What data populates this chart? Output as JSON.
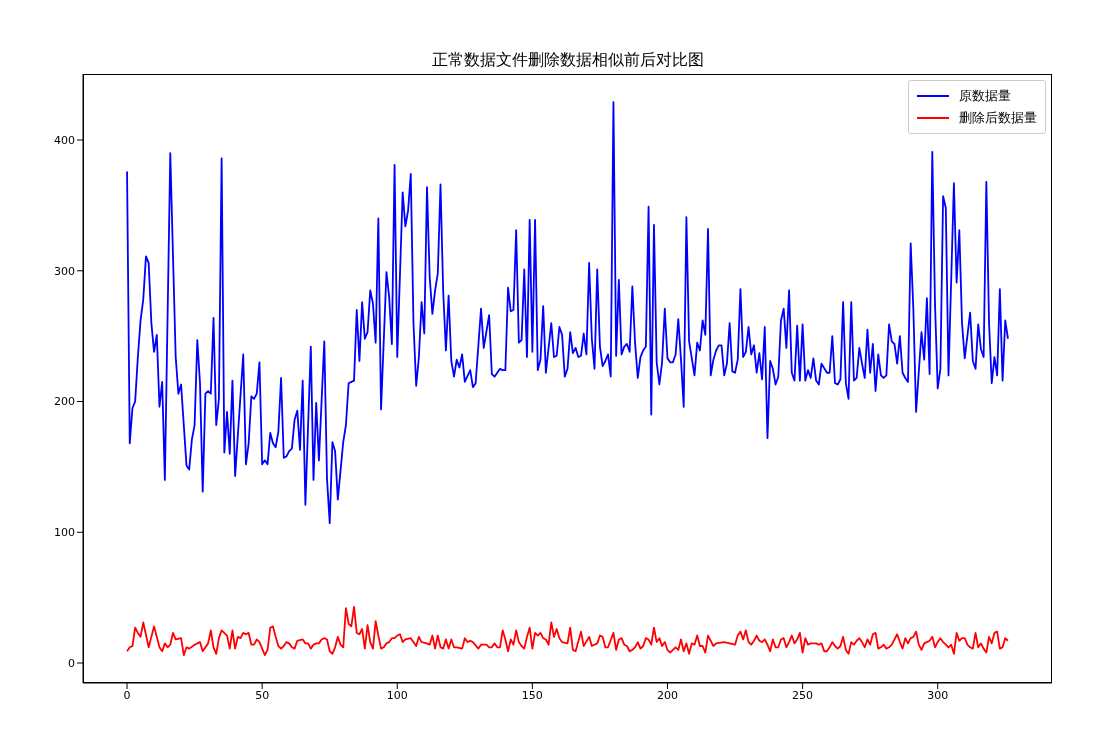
{
  "chart_data": {
    "type": "line",
    "title": "正常数据文件删除数据相似前后对比图",
    "legend": "top right",
    "xlim": [
      -16.3,
      342.3
    ],
    "xticks": [
      0,
      50,
      100,
      150,
      200,
      250,
      300
    ],
    "ylim": [
      -15.3,
      450.5
    ],
    "yticks": [
      0,
      100,
      200,
      300,
      400
    ],
    "series": [
      {
        "name": "原数据量",
        "color": "#0000ff",
        "x": [
          0,
          1,
          2,
          3,
          4,
          5,
          6,
          7,
          8,
          9,
          10,
          11,
          12,
          13,
          14,
          16,
          18,
          19,
          20,
          22,
          23,
          24,
          25,
          26,
          27,
          28,
          29,
          30,
          31,
          32,
          33,
          34,
          35,
          36,
          37,
          38,
          39,
          40,
          43,
          44,
          45,
          46,
          47,
          48,
          49,
          50,
          51,
          52,
          53,
          54,
          55,
          56,
          57,
          58,
          59,
          60,
          61,
          62,
          63,
          64,
          65,
          66,
          68,
          69,
          70,
          71,
          73,
          74,
          75,
          76,
          77,
          78,
          80,
          81,
          82,
          83,
          84,
          85,
          86,
          87,
          88,
          89,
          90,
          91,
          92,
          93,
          94,
          96,
          97,
          98,
          99,
          100,
          102,
          103,
          104,
          105,
          106,
          107,
          108,
          109,
          110,
          111,
          112,
          113,
          114,
          115,
          116,
          117,
          118,
          119,
          120,
          121,
          122,
          123,
          124,
          125,
          127,
          128,
          129,
          131,
          132,
          134,
          135,
          136,
          138,
          139,
          140,
          141,
          142,
          143,
          144,
          145,
          146,
          147,
          148,
          149,
          150,
          151,
          152,
          153,
          154,
          155,
          157,
          158,
          159,
          160,
          161,
          162,
          163,
          164,
          165,
          166,
          167,
          168,
          169,
          170,
          171,
          172,
          173,
          174,
          175,
          176,
          177,
          178,
          179,
          180,
          181,
          182,
          183,
          184,
          185,
          186,
          187,
          188,
          189,
          190,
          191,
          192,
          193,
          194,
          195,
          196,
          197,
          198,
          199,
          200,
          201,
          202,
          203,
          204,
          205,
          206,
          207,
          208,
          209,
          210,
          211,
          212,
          213,
          214,
          215,
          216,
          217,
          218,
          219,
          220,
          221,
          222,
          223,
          224,
          225,
          226,
          227,
          228,
          229,
          230,
          231,
          232,
          233,
          234,
          235,
          236,
          237,
          238,
          239,
          240,
          241,
          242,
          243,
          244,
          245,
          246,
          247,
          248,
          249,
          250,
          251,
          252,
          253,
          254,
          255,
          256,
          257,
          259,
          260,
          261,
          262,
          263,
          264,
          265,
          266,
          267,
          268,
          269,
          270,
          271,
          272,
          273,
          274,
          275,
          276,
          277,
          278,
          279,
          280,
          281,
          282,
          283,
          284,
          285,
          286,
          287,
          288,
          289,
          290,
          291,
          292,
          294,
          295,
          296,
          297,
          298,
          299,
          300,
          301,
          302,
          303,
          304,
          306,
          307,
          308,
          309,
          310,
          312,
          313,
          314,
          315,
          316,
          317,
          318,
          319,
          320,
          321,
          322,
          323,
          324,
          325,
          326
        ],
        "values": [
          376,
          168,
          195,
          200,
          234,
          262,
          278,
          311,
          306,
          260,
          238,
          251,
          196,
          215,
          140,
          390,
          234,
          206,
          213,
          151,
          148,
          171,
          182,
          247,
          214,
          131,
          206,
          208,
          206,
          264,
          182,
          202,
          386,
          161,
          192,
          160,
          216,
          143,
          236,
          152,
          168,
          204,
          202,
          206,
          230,
          152,
          155,
          152,
          176,
          168,
          165,
          177,
          218,
          157,
          158,
          162,
          164,
          186,
          193,
          163,
          216,
          121,
          242,
          140,
          199,
          155,
          246,
          141,
          107,
          169,
          162,
          125,
          169,
          182,
          214,
          215,
          216,
          270,
          231,
          276,
          248,
          253,
          285,
          275,
          245,
          340,
          194,
          299,
          280,
          244,
          381,
          234,
          360,
          334,
          346,
          374,
          260,
          212,
          234,
          276,
          252,
          364,
          295,
          267,
          285,
          298,
          366,
          284,
          239,
          281,
          231,
          219,
          232,
          226,
          236,
          215,
          224,
          211,
          214,
          271,
          241,
          266,
          221,
          219,
          225,
          224,
          224,
          287,
          269,
          270,
          331,
          245,
          247,
          301,
          234,
          339,
          238,
          339,
          224,
          232,
          273,
          222,
          260,
          234,
          235,
          257,
          251,
          219,
          225,
          253,
          237,
          241,
          234,
          235,
          252,
          236,
          306,
          248,
          225,
          301,
          242,
          227,
          231,
          236,
          219,
          429,
          235,
          293,
          236,
          242,
          244,
          238,
          288,
          245,
          218,
          234,
          239,
          242,
          349,
          190,
          335,
          230,
          213,
          230,
          271,
          233,
          230,
          230,
          236,
          263,
          232,
          196,
          341,
          246,
          233,
          220,
          245,
          239,
          262,
          251,
          332,
          220,
          232,
          239,
          243,
          243,
          220,
          229,
          260,
          223,
          222,
          232,
          286,
          234,
          238,
          257,
          236,
          243,
          222,
          237,
          217,
          257,
          172,
          231,
          225,
          213,
          219,
          262,
          271,
          241,
          285,
          222,
          216,
          258,
          216,
          259,
          216,
          224,
          218,
          233,
          216,
          213,
          229,
          222,
          222,
          250,
          214,
          213,
          217,
          276,
          214,
          202,
          276,
          216,
          218,
          241,
          229,
          218,
          255,
          222,
          244,
          208,
          236,
          220,
          218,
          220,
          259,
          246,
          244,
          229,
          250,
          222,
          218,
          215,
          321,
          270,
          192,
          253,
          232,
          279,
          221,
          391,
          275,
          210,
          225,
          357,
          348,
          220,
          367,
          291,
          331,
          260,
          233,
          268,
          231,
          225,
          259,
          240,
          234,
          368,
          260,
          214,
          234,
          220,
          286,
          216,
          262,
          248
        ]
      },
      {
        "name": "删除后数据量",
        "color": "#ff0000",
        "x": [
          0,
          1,
          2,
          3,
          4,
          5,
          6,
          8,
          10,
          12,
          13,
          14,
          15,
          16,
          17,
          18,
          20,
          21,
          22,
          23,
          25,
          26,
          27,
          28,
          30,
          31,
          32,
          33,
          34,
          35,
          37,
          38,
          39,
          40,
          41,
          42,
          43,
          44,
          45,
          46,
          47,
          48,
          49,
          51,
          52,
          53,
          54,
          55,
          56,
          57,
          58,
          59,
          60,
          61,
          62,
          63,
          65,
          66,
          67,
          68,
          69,
          70,
          71,
          72,
          73,
          74,
          75,
          76,
          77,
          78,
          79,
          80,
          81,
          82,
          83,
          84,
          85,
          86,
          87,
          88,
          89,
          90,
          91,
          92,
          93,
          94,
          95,
          96,
          97,
          98,
          99,
          100,
          101,
          102,
          103,
          105,
          107,
          108,
          109,
          111,
          112,
          113,
          114,
          115,
          116,
          117,
          118,
          119,
          120,
          121,
          122,
          124,
          125,
          126,
          127,
          128,
          130,
          131,
          133,
          134,
          135,
          136,
          137,
          138,
          139,
          140,
          141,
          142,
          143,
          144,
          145,
          146,
          147,
          148,
          149,
          150,
          151,
          152,
          153,
          154,
          155,
          156,
          157,
          158,
          159,
          160,
          161,
          163,
          164,
          165,
          166,
          168,
          169,
          171,
          172,
          174,
          175,
          176,
          177,
          178,
          180,
          181,
          182,
          183,
          184,
          185,
          186,
          187,
          188,
          189,
          190,
          191,
          192,
          193,
          194,
          195,
          196,
          197,
          198,
          199,
          200,
          201,
          202,
          203,
          204,
          205,
          206,
          207,
          208,
          209,
          210,
          211,
          212,
          213,
          214,
          215,
          217,
          218,
          221,
          223,
          225,
          226,
          227,
          228,
          229,
          230,
          231,
          232,
          233,
          234,
          235,
          236,
          237,
          238,
          239,
          240,
          241,
          242,
          243,
          244,
          245,
          246,
          247,
          248,
          249,
          250,
          251,
          252,
          253,
          255,
          256,
          257,
          258,
          259,
          260,
          261,
          262,
          263,
          264,
          265,
          266,
          267,
          268,
          269,
          270,
          271,
          272,
          273,
          274,
          275,
          276,
          277,
          278,
          279,
          280,
          281,
          282,
          283,
          285,
          286,
          287,
          288,
          289,
          290,
          291,
          292,
          293,
          294,
          295,
          296,
          297,
          298,
          299,
          300,
          301,
          302,
          303,
          304,
          305,
          306,
          307,
          308,
          309,
          310,
          311,
          312,
          313,
          314,
          315,
          316,
          317,
          318,
          319,
          320,
          321,
          322,
          323,
          324,
          325,
          326
        ],
        "values": [
          9,
          12,
          13,
          27,
          23,
          20,
          31,
          12,
          28,
          12,
          9,
          15,
          12,
          14,
          23,
          18,
          19,
          6,
          12,
          11,
          14,
          15,
          16,
          9,
          15,
          25,
          12,
          7,
          19,
          25,
          21,
          11,
          25,
          11,
          20,
          19,
          23,
          22,
          23,
          14,
          14,
          18,
          16,
          6,
          10,
          27,
          28,
          20,
          13,
          11,
          13,
          16,
          15,
          12,
          11,
          17,
          18,
          15,
          15,
          11,
          14,
          15,
          15,
          18,
          19,
          18,
          9,
          7,
          12,
          20,
          14,
          12,
          42,
          30,
          28,
          43,
          23,
          22,
          26,
          11,
          29,
          16,
          11,
          32,
          21,
          11,
          12,
          15,
          16,
          19,
          19,
          21,
          22,
          16,
          18,
          19,
          13,
          20,
          16,
          15,
          14,
          21,
          11,
          21,
          12,
          11,
          18,
          11,
          18,
          12,
          12,
          11,
          19,
          16,
          17,
          16,
          11,
          14,
          14,
          12,
          12,
          15,
          12,
          12,
          25,
          18,
          9,
          18,
          14,
          25,
          16,
          13,
          11,
          20,
          27,
          11,
          23,
          21,
          23,
          19,
          18,
          14,
          31,
          20,
          26,
          19,
          16,
          15,
          27,
          10,
          9,
          24,
          13,
          20,
          13,
          15,
          21,
          20,
          12,
          12,
          23,
          10,
          18,
          19,
          14,
          13,
          9,
          10,
          12,
          16,
          11,
          13,
          19,
          18,
          14,
          27,
          16,
          19,
          13,
          16,
          10,
          8,
          10,
          12,
          10,
          18,
          9,
          15,
          7,
          15,
          14,
          21,
          13,
          13,
          8,
          21,
          13,
          15,
          16,
          15,
          14,
          21,
          24,
          18,
          25,
          16,
          14,
          17,
          21,
          17,
          16,
          18,
          14,
          9,
          18,
          12,
          12,
          18,
          19,
          12,
          16,
          21,
          15,
          18,
          23,
          8,
          19,
          14,
          15,
          15,
          14,
          15,
          9,
          9,
          12,
          16,
          13,
          11,
          13,
          20,
          10,
          7,
          16,
          14,
          17,
          19,
          16,
          12,
          18,
          14,
          22,
          23,
          11,
          12,
          14,
          11,
          12,
          14,
          22,
          16,
          11,
          19,
          15,
          19,
          20,
          24,
          14,
          10,
          15,
          16,
          17,
          20,
          12,
          16,
          19,
          16,
          14,
          12,
          14,
          7,
          23,
          17,
          19,
          19,
          14,
          12,
          11,
          23,
          12,
          15,
          11,
          8,
          20,
          15,
          23,
          24,
          11,
          12,
          19,
          17
        ]
      }
    ]
  }
}
